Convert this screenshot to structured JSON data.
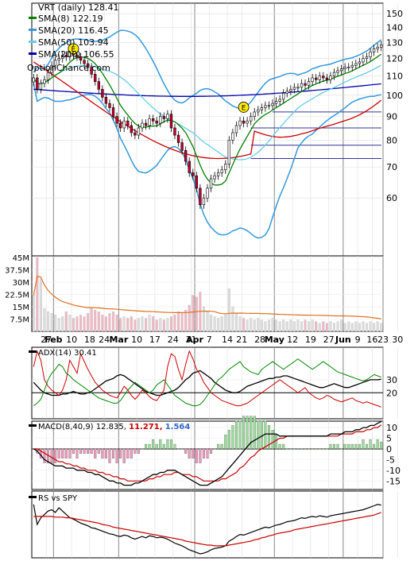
{
  "chart_data": [
    {
      "type": "candlestick",
      "panel": "price",
      "title": "VRT (daily) 128.41",
      "watermark": "OptionChance.com",
      "legend": [
        {
          "label": "SMA(8) 122.19",
          "color": "#008000"
        },
        {
          "label": "SMA(20) 116.45",
          "color": "#3399dd"
        },
        {
          "label": "SMA(50) 103.94",
          "color": "#66ccee"
        },
        {
          "label": "SMA(200) 106.55",
          "color": "#0000aa"
        }
      ],
      "ylim": [
        45,
        158
      ],
      "yticks": [
        "150",
        "140",
        "130",
        "120",
        "110",
        "100",
        "90",
        "80",
        "70",
        "60"
      ],
      "yscale": "log",
      "earnings_marker": "E",
      "close": [
        109,
        103,
        106,
        108,
        112,
        116,
        119,
        120,
        122,
        121,
        124,
        122,
        121,
        119,
        117,
        115,
        111,
        107,
        103,
        99,
        96,
        94,
        90,
        87,
        85,
        88,
        86,
        83,
        82,
        85,
        87,
        86,
        89,
        88,
        87,
        90,
        89,
        91,
        85,
        82,
        79,
        76,
        72,
        68,
        67,
        63,
        58,
        60,
        63,
        66,
        67,
        68,
        69,
        71,
        80,
        83,
        86,
        88,
        87,
        88,
        90,
        92,
        93,
        94,
        95,
        95,
        96,
        97,
        98,
        101,
        102,
        103,
        104,
        104,
        106,
        105,
        107,
        109,
        108,
        110,
        109,
        108,
        110,
        112,
        113,
        114,
        115,
        115,
        116,
        117,
        118,
        120,
        121,
        124,
        126,
        127,
        128.4
      ],
      "hlines": [
        92,
        85,
        78,
        73
      ],
      "sma": {
        "sma8_last": 122.19,
        "sma20_last": 116.45,
        "sma50_last": 103.94,
        "sma200_last": 106.55
      }
    },
    {
      "type": "bar",
      "panel": "volume",
      "yticks": [
        "45M",
        "37.5M",
        "30M",
        "22.5M",
        "15M",
        "7.5M"
      ],
      "ylim": [
        0,
        46
      ],
      "values": [
        22,
        45,
        32,
        14,
        12,
        11,
        10,
        8,
        9,
        12,
        10,
        8,
        9,
        10,
        9,
        11,
        14,
        13,
        12,
        10,
        9,
        11,
        12,
        10,
        8,
        9,
        8,
        9,
        7,
        8,
        9,
        8,
        10,
        9,
        7,
        8,
        7,
        8,
        9,
        10,
        12,
        11,
        13,
        16,
        22,
        21,
        24,
        15,
        12,
        10,
        9,
        8,
        9,
        10,
        26,
        15,
        11,
        9,
        8,
        7,
        8,
        7,
        8,
        7,
        6,
        7,
        8,
        7,
        6,
        7,
        6,
        7,
        6,
        7,
        6,
        7,
        6,
        7,
        6,
        5,
        6,
        5,
        6,
        5,
        6,
        7,
        5,
        6,
        5,
        6,
        5,
        6,
        5,
        6,
        5,
        6,
        5
      ],
      "avg_color": "#e07020"
    },
    {
      "type": "line",
      "panel": "ADX",
      "title": "ADX(14) 30.41",
      "yticks": [
        "30",
        "20"
      ],
      "ylim": [
        0,
        55
      ],
      "hline": 20,
      "series": [
        {
          "color": "#000000",
          "values": [
            28,
            25,
            22,
            20,
            19,
            18,
            18,
            18,
            19,
            19,
            20,
            21,
            20,
            19,
            19,
            20,
            21,
            23,
            25,
            27,
            29,
            30,
            31,
            33,
            34,
            33,
            31,
            29,
            27,
            25,
            23,
            21,
            20,
            19,
            18,
            18,
            19,
            20,
            21,
            22,
            24,
            27,
            30,
            32,
            35,
            36,
            37,
            35,
            33,
            31,
            28,
            26,
            24,
            22,
            21,
            20,
            20,
            21,
            23,
            25,
            26,
            27,
            28,
            29,
            30,
            31,
            31,
            32,
            32,
            33,
            33,
            32,
            31,
            30,
            29,
            28,
            27,
            26,
            25,
            24,
            24,
            25,
            26,
            27,
            26,
            25,
            24,
            24,
            25,
            26,
            27,
            28,
            29,
            30,
            30,
            30,
            30.4
          ]
        },
        {
          "color": "#cc0000",
          "values": [
            40,
            52,
            45,
            30,
            25,
            22,
            20,
            18,
            22,
            30,
            45,
            40,
            35,
            50,
            44,
            38,
            33,
            28,
            25,
            22,
            20,
            18,
            17,
            16,
            20,
            25,
            22,
            18,
            15,
            18,
            22,
            20,
            17,
            15,
            14,
            18,
            22,
            40,
            50,
            48,
            38,
            30,
            42,
            52,
            46,
            38,
            34,
            28,
            24,
            20,
            18,
            16,
            14,
            13,
            12,
            11,
            10,
            10,
            11,
            12,
            14,
            16,
            18,
            20,
            22,
            24,
            26,
            28,
            30,
            28,
            26,
            24,
            22,
            20,
            22,
            24,
            20,
            18,
            16,
            15,
            16,
            18,
            17,
            15,
            14,
            13,
            14,
            15,
            16,
            14,
            13,
            12,
            13,
            12,
            11,
            10,
            9
          ]
        },
        {
          "color": "#008800",
          "values": [
            10,
            12,
            15,
            22,
            30,
            35,
            38,
            42,
            40,
            35,
            33,
            30,
            28,
            26,
            24,
            22,
            20,
            18,
            16,
            15,
            14,
            13,
            12,
            12,
            14,
            18,
            22,
            25,
            28,
            26,
            24,
            22,
            20,
            22,
            26,
            28,
            30,
            26,
            22,
            18,
            16,
            14,
            12,
            11,
            10,
            10,
            11,
            14,
            18,
            22,
            26,
            30,
            32,
            35,
            38,
            40,
            42,
            44,
            40,
            38,
            36,
            35,
            34,
            38,
            40,
            42,
            44,
            42,
            40,
            38,
            40,
            42,
            44,
            46,
            44,
            42,
            40,
            38,
            40,
            42,
            44,
            42,
            40,
            38,
            36,
            35,
            34,
            33,
            32,
            31,
            30,
            29,
            30,
            32,
            34,
            33,
            32
          ]
        }
      ]
    },
    {
      "type": "bar+line",
      "panel": "MACD",
      "title": "MACD(8,40,9) 12.835,",
      "value2": "11.271,",
      "value3": "1.564",
      "value2_color": "#cc0000",
      "value3_color": "#3366cc",
      "yticks": [
        "10",
        "5",
        "0",
        "-5",
        "-10",
        "-15"
      ],
      "ylim": [
        -19,
        13
      ],
      "macd": [
        0,
        -1,
        -3,
        -5,
        -6,
        -7,
        -8,
        -8,
        -8,
        -9,
        -9,
        -9,
        -10,
        -10,
        -10,
        -11,
        -11,
        -12,
        -12,
        -13,
        -14,
        -15,
        -15,
        -16,
        -16,
        -17,
        -17,
        -17,
        -16,
        -16,
        -15,
        -14,
        -13,
        -12,
        -12,
        -11,
        -11,
        -10,
        -10,
        -10,
        -11,
        -12,
        -13,
        -14,
        -15,
        -16,
        -17,
        -17,
        -17,
        -16,
        -15,
        -14,
        -13,
        -11,
        -9,
        -7,
        -5,
        -3,
        -1,
        1,
        3,
        4,
        5,
        6,
        7,
        7,
        7,
        7,
        6,
        6,
        6,
        6,
        6,
        6,
        6,
        6,
        6,
        6,
        6,
        6,
        6,
        6,
        7,
        7,
        7,
        7,
        8,
        8,
        8,
        9,
        9,
        10,
        10,
        11,
        11,
        12,
        12.8
      ],
      "signal": [
        0,
        0,
        -1,
        -2,
        -3,
        -4,
        -5,
        -6,
        -6,
        -7,
        -7,
        -8,
        -8,
        -9,
        -9,
        -10,
        -10,
        -10,
        -11,
        -11,
        -12,
        -12,
        -13,
        -13,
        -14,
        -14,
        -15,
        -15,
        -15,
        -15,
        -15,
        -15,
        -14,
        -14,
        -13,
        -13,
        -12,
        -12,
        -12,
        -11,
        -11,
        -12,
        -12,
        -12,
        -13,
        -13,
        -14,
        -15,
        -15,
        -15,
        -15,
        -15,
        -14,
        -14,
        -13,
        -12,
        -11,
        -9,
        -8,
        -6,
        -4,
        -3,
        -1,
        0,
        1,
        2,
        3,
        4,
        5,
        5,
        6,
        6,
        6,
        6,
        6,
        6,
        6,
        6,
        6,
        6,
        6,
        6,
        6,
        6,
        6,
        7,
        7,
        7,
        7,
        8,
        8,
        8,
        9,
        9,
        10,
        10,
        11.3
      ],
      "hist_colors": {
        "pos": "#99dd99",
        "neg": "#ee99bb"
      }
    },
    {
      "type": "line",
      "panel": "RS",
      "title": "RS vs SPY",
      "ylim": [
        0,
        100
      ],
      "series": [
        {
          "color": "#000000",
          "values": [
            80,
            50,
            60,
            65,
            70,
            72,
            68,
            75,
            70,
            65,
            60,
            58,
            55,
            52,
            50,
            48,
            45,
            44,
            42,
            40,
            38,
            36,
            35,
            33,
            32,
            34,
            33,
            30,
            28,
            30,
            32,
            30,
            33,
            32,
            30,
            31,
            30,
            28,
            25,
            22,
            20,
            18,
            15,
            12,
            10,
            8,
            6,
            7,
            9,
            12,
            14,
            15,
            16,
            18,
            25,
            28,
            32,
            35,
            34,
            36,
            38,
            40,
            42,
            44,
            46,
            45,
            47,
            49,
            50,
            52,
            54,
            55,
            56,
            58,
            60,
            59,
            61,
            62,
            61,
            63,
            62,
            61,
            63,
            64,
            65,
            66,
            67,
            68,
            69,
            70,
            71,
            72,
            74,
            76,
            78,
            80,
            79
          ]
        },
        {
          "color": "#cc0000",
          "values": [
            62,
            62,
            62,
            62,
            62,
            62,
            61,
            61,
            61,
            60,
            60,
            59,
            58,
            57,
            56,
            55,
            54,
            53,
            52,
            50,
            49,
            48,
            46,
            45,
            44,
            43,
            42,
            41,
            40,
            39,
            38,
            37,
            36,
            35,
            34,
            33,
            32,
            31,
            30,
            29,
            28,
            27,
            25,
            24,
            23,
            22,
            21,
            20,
            19,
            19,
            18,
            18,
            18,
            18,
            19,
            20,
            21,
            22,
            23,
            24,
            25,
            27,
            28,
            30,
            31,
            33,
            34,
            36,
            37,
            38,
            39,
            40,
            42,
            43,
            44,
            45,
            46,
            47,
            48,
            49,
            50,
            51,
            52,
            53,
            54,
            55,
            56,
            57,
            58,
            59,
            60,
            61,
            62,
            63,
            64,
            66,
            68
          ]
        }
      ]
    }
  ],
  "x_axis": {
    "labels": [
      {
        "text": "27",
        "idx": 4,
        "bold": false
      },
      {
        "text": "Feb",
        "idx": 6,
        "bold": true
      },
      {
        "text": "10",
        "idx": 11,
        "bold": false
      },
      {
        "text": "18",
        "idx": 16,
        "bold": false
      },
      {
        "text": "24",
        "idx": 20,
        "bold": false
      },
      {
        "text": "Mar",
        "idx": 24,
        "bold": true
      },
      {
        "text": "10",
        "idx": 29,
        "bold": false
      },
      {
        "text": "17",
        "idx": 34,
        "bold": false
      },
      {
        "text": "24",
        "idx": 39,
        "bold": false
      },
      {
        "text": "31",
        "idx": 44,
        "bold": false
      },
      {
        "text": "Apr",
        "idx": 45,
        "bold": true
      },
      {
        "text": "7",
        "idx": 49,
        "bold": false
      },
      {
        "text": "14",
        "idx": 54,
        "bold": false
      },
      {
        "text": "21",
        "idx": 58,
        "bold": false
      },
      {
        "text": "28",
        "idx": 63,
        "bold": false
      },
      {
        "text": "May",
        "idx": 67,
        "bold": true
      },
      {
        "text": "12",
        "idx": 72,
        "bold": false
      },
      {
        "text": "19",
        "idx": 77,
        "bold": false
      },
      {
        "text": "27",
        "idx": 82,
        "bold": false
      },
      {
        "text": "Jun",
        "idx": 86,
        "bold": true
      },
      {
        "text": "9",
        "idx": 90,
        "bold": false
      },
      {
        "text": "16",
        "idx": 94,
        "bold": false
      },
      {
        "text": "23",
        "idx": 97,
        "bold": false
      },
      {
        "text": "30",
        "idx": 101,
        "bold": false
      }
    ]
  }
}
